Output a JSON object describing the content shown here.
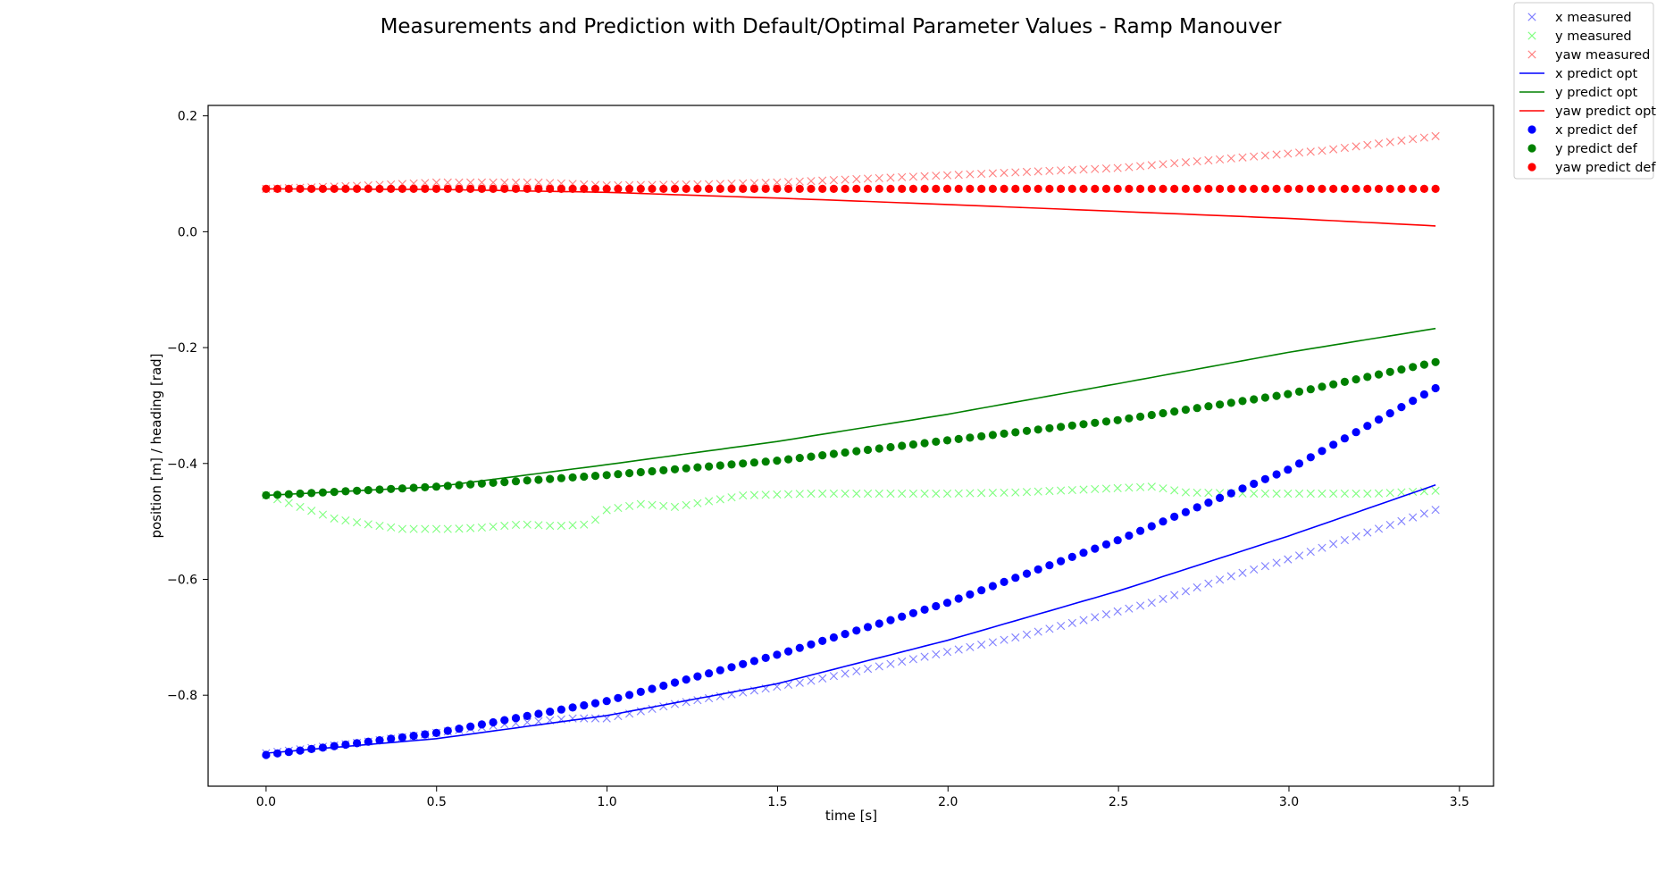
{
  "chart_data": {
    "type": "line",
    "title": "Measurements and Prediction with Default/Optimal Parameter Values - Ramp Manouver",
    "xlabel": "time [s]",
    "ylabel": "position [m] / heading [rad]",
    "xlim": [
      -0.17,
      3.6
    ],
    "ylim": [
      -0.957,
      0.218
    ],
    "xticks": [
      0.0,
      0.5,
      1.0,
      1.5,
      2.0,
      2.5,
      3.0,
      3.5
    ],
    "xtick_labels": [
      "0.0",
      "0.5",
      "1.0",
      "1.5",
      "2.0",
      "2.5",
      "3.0",
      "3.5"
    ],
    "yticks": [
      0.2,
      0.0,
      -0.2,
      -0.4,
      -0.6,
      -0.8
    ],
    "ytick_labels": [
      "0.2",
      "0.0",
      "−0.2",
      "−0.4",
      "−0.6",
      "−0.8"
    ],
    "grid": false,
    "legend_position": "top-right outside",
    "x_start": 0.0,
    "x_end": 3.43,
    "sample_step": 0.0333,
    "series": [
      {
        "name": "x measured",
        "kind": "marker-x",
        "color": "#0000ff",
        "alpha": 0.5,
        "points": [
          [
            0,
            -0.9
          ],
          [
            0.3,
            -0.88
          ],
          [
            0.5,
            -0.865
          ],
          [
            0.7,
            -0.85
          ],
          [
            0.9,
            -0.84
          ],
          [
            1.0,
            -0.84
          ],
          [
            1.2,
            -0.815
          ],
          [
            1.4,
            -0.795
          ],
          [
            1.6,
            -0.775
          ],
          [
            1.8,
            -0.75
          ],
          [
            2.0,
            -0.725
          ],
          [
            2.2,
            -0.7
          ],
          [
            2.4,
            -0.67
          ],
          [
            2.6,
            -0.64
          ],
          [
            2.8,
            -0.6
          ],
          [
            3.0,
            -0.565
          ],
          [
            3.2,
            -0.525
          ],
          [
            3.43,
            -0.48
          ]
        ]
      },
      {
        "name": "y measured",
        "kind": "marker-x",
        "color": "#00ff00",
        "alpha": 0.5,
        "points": [
          [
            0,
            -0.455
          ],
          [
            0.1,
            -0.475
          ],
          [
            0.2,
            -0.495
          ],
          [
            0.3,
            -0.505
          ],
          [
            0.4,
            -0.513
          ],
          [
            0.55,
            -0.513
          ],
          [
            0.65,
            -0.51
          ],
          [
            0.75,
            -0.505
          ],
          [
            0.85,
            -0.508
          ],
          [
            0.95,
            -0.505
          ],
          [
            1.0,
            -0.48
          ],
          [
            1.1,
            -0.47
          ],
          [
            1.2,
            -0.475
          ],
          [
            1.3,
            -0.465
          ],
          [
            1.4,
            -0.455
          ],
          [
            1.6,
            -0.452
          ],
          [
            1.8,
            -0.452
          ],
          [
            2.0,
            -0.452
          ],
          [
            2.2,
            -0.45
          ],
          [
            2.4,
            -0.445
          ],
          [
            2.6,
            -0.44
          ],
          [
            2.7,
            -0.45
          ],
          [
            2.9,
            -0.452
          ],
          [
            3.1,
            -0.452
          ],
          [
            3.25,
            -0.452
          ],
          [
            3.43,
            -0.447
          ]
        ]
      },
      {
        "name": "yaw measured",
        "kind": "marker-x",
        "color": "#ff0000",
        "alpha": 0.5,
        "points": [
          [
            0,
            0.074
          ],
          [
            0.3,
            0.08
          ],
          [
            0.5,
            0.085
          ],
          [
            0.8,
            0.085
          ],
          [
            1.0,
            0.08
          ],
          [
            1.3,
            0.082
          ],
          [
            1.5,
            0.085
          ],
          [
            1.7,
            0.09
          ],
          [
            1.9,
            0.095
          ],
          [
            2.1,
            0.1
          ],
          [
            2.3,
            0.105
          ],
          [
            2.5,
            0.11
          ],
          [
            2.7,
            0.12
          ],
          [
            2.9,
            0.13
          ],
          [
            3.1,
            0.14
          ],
          [
            3.3,
            0.155
          ],
          [
            3.43,
            0.165
          ]
        ]
      },
      {
        "name": "x predict opt",
        "kind": "line",
        "color": "#0000ff",
        "points": [
          [
            0,
            -0.9
          ],
          [
            0.5,
            -0.875
          ],
          [
            1.0,
            -0.835
          ],
          [
            1.5,
            -0.78
          ],
          [
            2.0,
            -0.705
          ],
          [
            2.5,
            -0.62
          ],
          [
            3.0,
            -0.525
          ],
          [
            3.43,
            -0.437
          ]
        ]
      },
      {
        "name": "y predict opt",
        "kind": "line",
        "color": "#008000",
        "points": [
          [
            0,
            -0.455
          ],
          [
            0.5,
            -0.44
          ],
          [
            1.0,
            -0.402
          ],
          [
            1.5,
            -0.362
          ],
          [
            2.0,
            -0.315
          ],
          [
            2.5,
            -0.262
          ],
          [
            3.0,
            -0.208
          ],
          [
            3.43,
            -0.167
          ]
        ]
      },
      {
        "name": "yaw predict opt",
        "kind": "line",
        "color": "#ff0000",
        "points": [
          [
            0,
            0.074
          ],
          [
            0.5,
            0.073
          ],
          [
            1.0,
            0.068
          ],
          [
            1.5,
            0.058
          ],
          [
            2.0,
            0.047
          ],
          [
            2.5,
            0.035
          ],
          [
            3.0,
            0.023
          ],
          [
            3.43,
            0.01
          ]
        ]
      },
      {
        "name": "x predict def",
        "kind": "marker-dot",
        "color": "#0000ff",
        "points": [
          [
            0,
            -0.903
          ],
          [
            0.5,
            -0.865
          ],
          [
            1.0,
            -0.81
          ],
          [
            1.5,
            -0.73
          ],
          [
            2.0,
            -0.64
          ],
          [
            2.5,
            -0.532
          ],
          [
            3.0,
            -0.41
          ],
          [
            3.43,
            -0.27
          ]
        ]
      },
      {
        "name": "y predict def",
        "kind": "marker-dot",
        "color": "#008000",
        "points": [
          [
            0,
            -0.455
          ],
          [
            0.5,
            -0.44
          ],
          [
            1.0,
            -0.42
          ],
          [
            1.5,
            -0.395
          ],
          [
            2.0,
            -0.36
          ],
          [
            2.5,
            -0.325
          ],
          [
            3.0,
            -0.28
          ],
          [
            3.43,
            -0.225
          ]
        ]
      },
      {
        "name": "yaw predict def",
        "kind": "marker-dot",
        "color": "#ff0000",
        "points": [
          [
            0,
            0.074
          ],
          [
            3.43,
            0.074
          ]
        ]
      }
    ]
  }
}
